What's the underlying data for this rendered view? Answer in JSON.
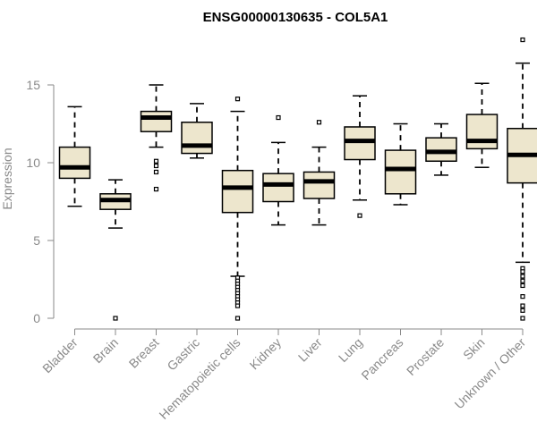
{
  "chart_data": {
    "type": "box",
    "title": "ENSG00000130635 - COL5A1",
    "xlabel": "",
    "ylabel": "Expression",
    "ylim": [
      0,
      18
    ],
    "yticks": [
      0,
      5,
      10,
      15
    ],
    "grid": false,
    "legend": "none",
    "colors": {
      "box_fill": "#ede6cd",
      "box_stroke": "#000000",
      "axis": "#8a8a8a"
    },
    "categories": [
      "Bladder",
      "Brain",
      "Breast",
      "Gastric",
      "Hematopoietic cells",
      "Kidney",
      "Liver",
      "Lung",
      "Pancreas",
      "Prostate",
      "Skin",
      "Unknown / Other"
    ],
    "boxes": [
      {
        "whisker_low": 7.2,
        "q1": 9.0,
        "median": 9.7,
        "q3": 11.0,
        "whisker_high": 13.6,
        "outliers": []
      },
      {
        "whisker_low": 5.8,
        "q1": 7.0,
        "median": 7.6,
        "q3": 8.0,
        "whisker_high": 8.9,
        "outliers": [
          0.0
        ]
      },
      {
        "whisker_low": 11.0,
        "q1": 12.0,
        "median": 12.9,
        "q3": 13.3,
        "whisker_high": 15.0,
        "outliers": [
          10.1,
          9.8,
          9.4,
          8.3
        ]
      },
      {
        "whisker_low": 10.3,
        "q1": 10.6,
        "median": 11.1,
        "q3": 12.6,
        "whisker_high": 13.8,
        "outliers": []
      },
      {
        "whisker_low": 2.7,
        "q1": 6.8,
        "median": 8.4,
        "q3": 9.5,
        "whisker_high": 13.3,
        "outliers": [
          14.1,
          2.6,
          2.4,
          2.2,
          2.0,
          1.8,
          1.6,
          1.4,
          1.2,
          1.0,
          0.8,
          0.0
        ]
      },
      {
        "whisker_low": 6.0,
        "q1": 7.5,
        "median": 8.6,
        "q3": 9.3,
        "whisker_high": 11.3,
        "outliers": [
          12.9
        ]
      },
      {
        "whisker_low": 6.0,
        "q1": 7.7,
        "median": 8.8,
        "q3": 9.4,
        "whisker_high": 11.0,
        "outliers": [
          12.6
        ]
      },
      {
        "whisker_low": 7.6,
        "q1": 10.2,
        "median": 11.4,
        "q3": 12.3,
        "whisker_high": 14.3,
        "outliers": [
          6.6
        ]
      },
      {
        "whisker_low": 7.3,
        "q1": 8.0,
        "median": 9.6,
        "q3": 10.8,
        "whisker_high": 12.5,
        "outliers": []
      },
      {
        "whisker_low": 9.2,
        "q1": 10.1,
        "median": 10.7,
        "q3": 11.6,
        "whisker_high": 12.5,
        "outliers": []
      },
      {
        "whisker_low": 9.7,
        "q1": 10.9,
        "median": 11.4,
        "q3": 13.1,
        "whisker_high": 15.1,
        "outliers": []
      },
      {
        "whisker_low": 3.6,
        "q1": 8.7,
        "median": 10.5,
        "q3": 12.2,
        "whisker_high": 16.4,
        "outliers": [
          17.9,
          3.2,
          3.0,
          2.7,
          2.4,
          2.1,
          1.4,
          0.8,
          0.5,
          0.0
        ]
      }
    ]
  }
}
